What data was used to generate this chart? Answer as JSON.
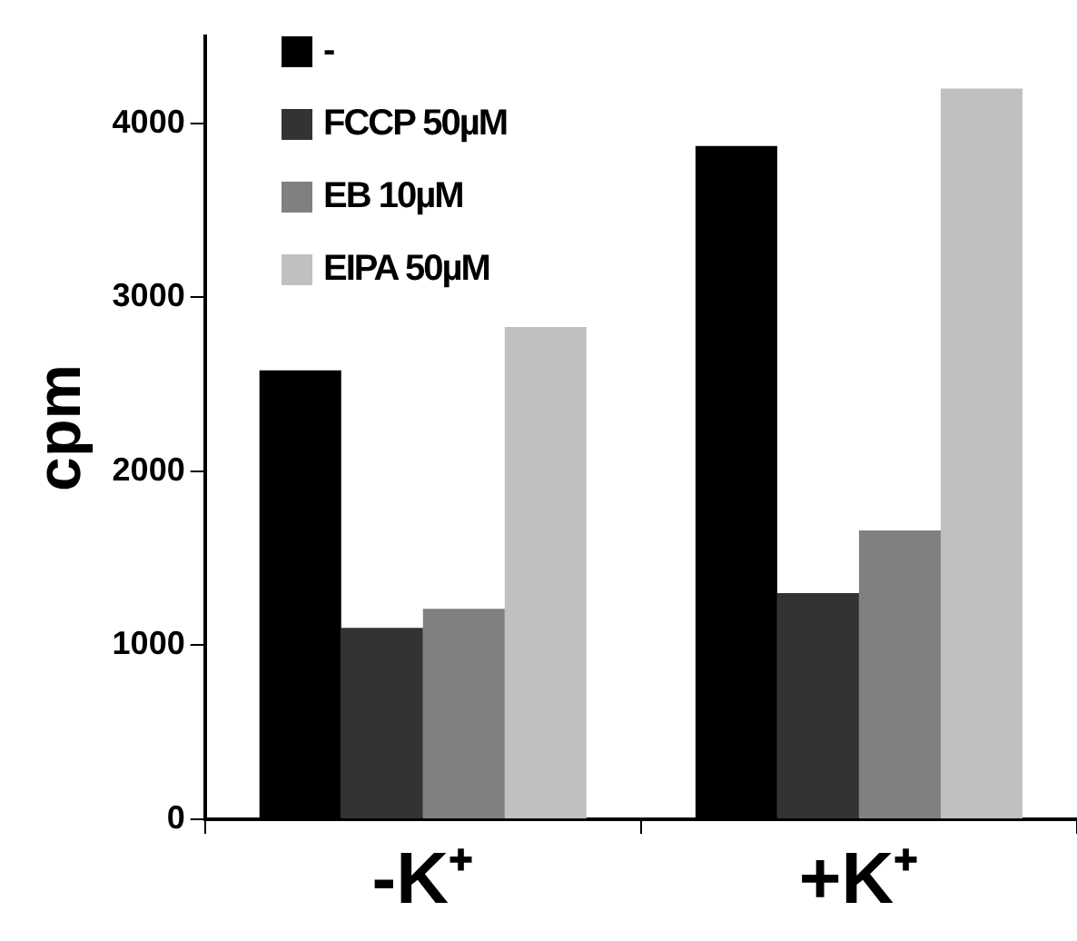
{
  "chart_data": {
    "type": "bar",
    "ylabel": "cpm",
    "categories": [
      "-K⁺",
      "+K⁺"
    ],
    "series": [
      {
        "name": "-",
        "color": "#000000",
        "values": [
          2580,
          3870
        ]
      },
      {
        "name": "FCCP 50µM",
        "color": "#333333",
        "values": [
          1100,
          1300
        ]
      },
      {
        "name": "EB 10µM",
        "color": "#808080",
        "values": [
          1210,
          1660
        ]
      },
      {
        "name": "EIPA 50µM",
        "color": "#c0c0c0",
        "values": [
          2830,
          4200
        ]
      }
    ],
    "ylim": [
      0,
      4500
    ],
    "yticks": [
      0,
      1000,
      2000,
      3000,
      4000
    ],
    "grid": false,
    "legend": "top left"
  }
}
